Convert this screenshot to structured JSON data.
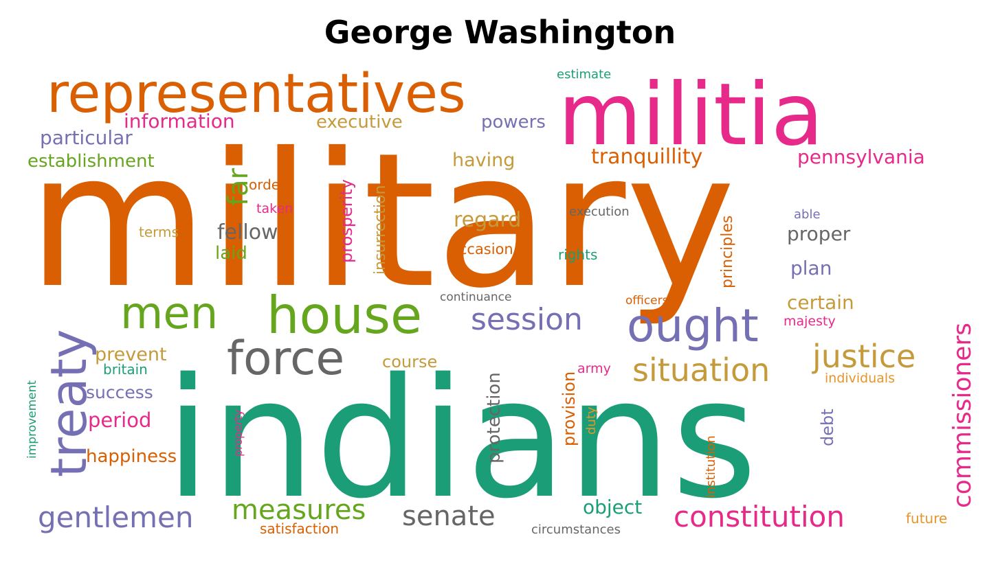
{
  "title": "George Washington",
  "palette": {
    "green": "#1b9e77",
    "orange": "#d95f02",
    "purple": "#7570b3",
    "pink": "#e7298a",
    "lime": "#66a61e",
    "gold": "#c49a3b",
    "amber": "#e69528",
    "gray": "#666666"
  },
  "words": [
    "military",
    "indians",
    "militia",
    "representatives",
    "treaty",
    "house",
    "force",
    "men",
    "ought",
    "commissioners",
    "justice",
    "situation",
    "session",
    "constitution",
    "gentlemen",
    "measures",
    "senate",
    "information",
    "executive",
    "powers",
    "estimate",
    "particular",
    "establishment",
    "far",
    "prosperity",
    "insurrection",
    "having",
    "tranquillity",
    "pennsylvania",
    "order",
    "taken",
    "fellow",
    "regard",
    "principles",
    "execution",
    "able",
    "terms",
    "laid",
    "occasion",
    "rights",
    "proper",
    "plan",
    "continuance",
    "officers",
    "certain",
    "majesty",
    "prevent",
    "britain",
    "course",
    "army",
    "individuals",
    "success",
    "improvement",
    "property",
    "protection",
    "provision",
    "duty",
    "institution",
    "debt",
    "period",
    "happiness",
    "object",
    "future",
    "satisfaction",
    "circumstances"
  ]
}
